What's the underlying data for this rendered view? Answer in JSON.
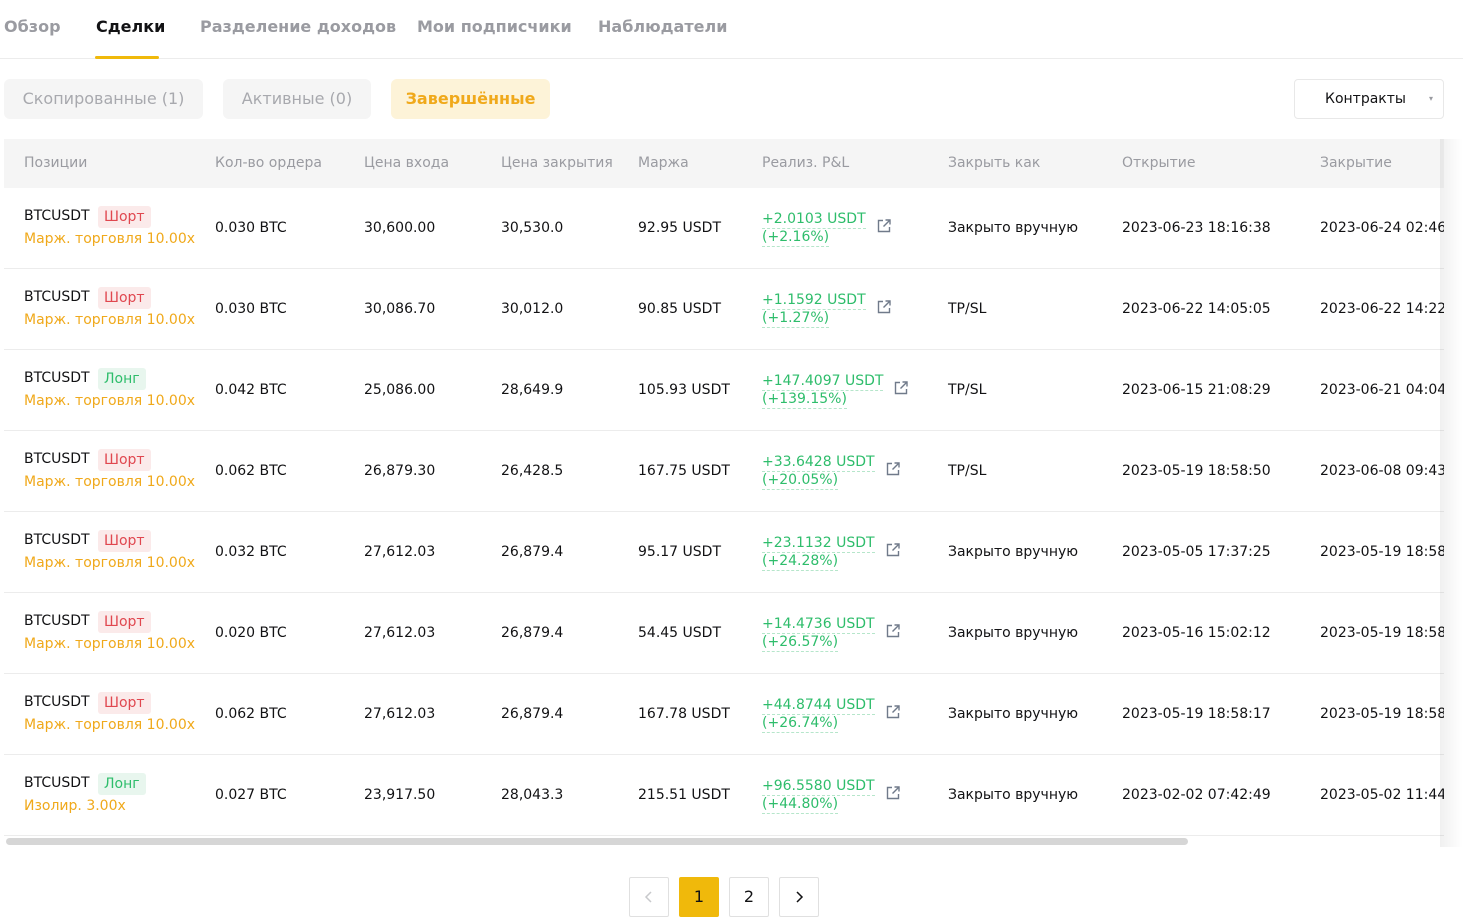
{
  "top_tabs": [
    {
      "label": "Обзор",
      "active": false
    },
    {
      "label": "Сделки",
      "active": true
    },
    {
      "label": "Разделение доходов",
      "active": false
    },
    {
      "label": "Мои подписчики",
      "active": false
    },
    {
      "label": "Наблюдатели",
      "active": false
    }
  ],
  "filters": {
    "copied": "Скопированные (1)",
    "active": "Активные (0)",
    "completed": "Завершённые",
    "selected": "completed"
  },
  "contract_select": {
    "value": "Контракты",
    "caret": "▾"
  },
  "table": {
    "headers": {
      "position": "Позиции",
      "qty": "Кол-во ордера",
      "entry": "Цена входа",
      "close": "Цена закрытия",
      "margin": "Маржа",
      "pnl": "Реализ. P&L",
      "close_as": "Закрыть как",
      "opened": "Открытие",
      "closed": "Закрытие"
    },
    "rows": [
      {
        "symbol": "BTCUSDT",
        "side": "Шорт",
        "side_type": "short",
        "leverage": "Марж. торговля 10.00x",
        "qty": "0.030 BTC",
        "entry": "30,600.00",
        "close": "30,530.0",
        "margin": "92.95 USDT",
        "pnl": "+2.0103 USDT",
        "pnl_pct": "(+2.16%)",
        "close_as": "Закрыто вручную",
        "opened": "2023-06-23 18:16:38",
        "closed": "2023-06-24 02:46"
      },
      {
        "symbol": "BTCUSDT",
        "side": "Шорт",
        "side_type": "short",
        "leverage": "Марж. торговля 10.00x",
        "qty": "0.030 BTC",
        "entry": "30,086.70",
        "close": "30,012.0",
        "margin": "90.85 USDT",
        "pnl": "+1.1592 USDT",
        "pnl_pct": "(+1.27%)",
        "close_as": "TP/SL",
        "opened": "2023-06-22 14:05:05",
        "closed": "2023-06-22 14:22"
      },
      {
        "symbol": "BTCUSDT",
        "side": "Лонг",
        "side_type": "long",
        "leverage": "Марж. торговля 10.00x",
        "qty": "0.042 BTC",
        "entry": "25,086.00",
        "close": "28,649.9",
        "margin": "105.93 USDT",
        "pnl": "+147.4097 USDT",
        "pnl_pct": "(+139.15%)",
        "close_as": "TP/SL",
        "opened": "2023-06-15 21:08:29",
        "closed": "2023-06-21 04:04"
      },
      {
        "symbol": "BTCUSDT",
        "side": "Шорт",
        "side_type": "short",
        "leverage": "Марж. торговля 10.00x",
        "qty": "0.062 BTC",
        "entry": "26,879.30",
        "close": "26,428.5",
        "margin": "167.75 USDT",
        "pnl": "+33.6428 USDT",
        "pnl_pct": "(+20.05%)",
        "close_as": "TP/SL",
        "opened": "2023-05-19 18:58:50",
        "closed": "2023-06-08 09:43"
      },
      {
        "symbol": "BTCUSDT",
        "side": "Шорт",
        "side_type": "short",
        "leverage": "Марж. торговля 10.00x",
        "qty": "0.032 BTC",
        "entry": "27,612.03",
        "close": "26,879.4",
        "margin": "95.17 USDT",
        "pnl": "+23.1132 USDT",
        "pnl_pct": "(+24.28%)",
        "close_as": "Закрыто вручную",
        "opened": "2023-05-05 17:37:25",
        "closed": "2023-05-19 18:58"
      },
      {
        "symbol": "BTCUSDT",
        "side": "Шорт",
        "side_type": "short",
        "leverage": "Марж. торговля 10.00x",
        "qty": "0.020 BTC",
        "entry": "27,612.03",
        "close": "26,879.4",
        "margin": "54.45 USDT",
        "pnl": "+14.4736 USDT",
        "pnl_pct": "(+26.57%)",
        "close_as": "Закрыто вручную",
        "opened": "2023-05-16 15:02:12",
        "closed": "2023-05-19 18:58"
      },
      {
        "symbol": "BTCUSDT",
        "side": "Шорт",
        "side_type": "short",
        "leverage": "Марж. торговля 10.00x",
        "qty": "0.062 BTC",
        "entry": "27,612.03",
        "close": "26,879.4",
        "margin": "167.78 USDT",
        "pnl": "+44.8744 USDT",
        "pnl_pct": "(+26.74%)",
        "close_as": "Закрыто вручную",
        "opened": "2023-05-19 18:58:17",
        "closed": "2023-05-19 18:58"
      },
      {
        "symbol": "BTCUSDT",
        "side": "Лонг",
        "side_type": "long",
        "leverage": "Изолир. 3.00x",
        "qty": "0.027 BTC",
        "entry": "23,917.50",
        "close": "28,043.3",
        "margin": "215.51 USDT",
        "pnl": "+96.5580 USDT",
        "pnl_pct": "(+44.80%)",
        "close_as": "Закрыто вручную",
        "opened": "2023-02-02 07:42:49",
        "closed": "2023-05-02 11:44"
      }
    ]
  },
  "pagination": {
    "prev_icon": "chevron-left-icon",
    "next_icon": "chevron-right-icon",
    "pages": [
      "1",
      "2"
    ],
    "current": "1"
  },
  "colors": {
    "accent": "#f0b90b",
    "profit": "#2ebd6b",
    "short": "#e0474f",
    "leverage": "#f0a91b"
  }
}
